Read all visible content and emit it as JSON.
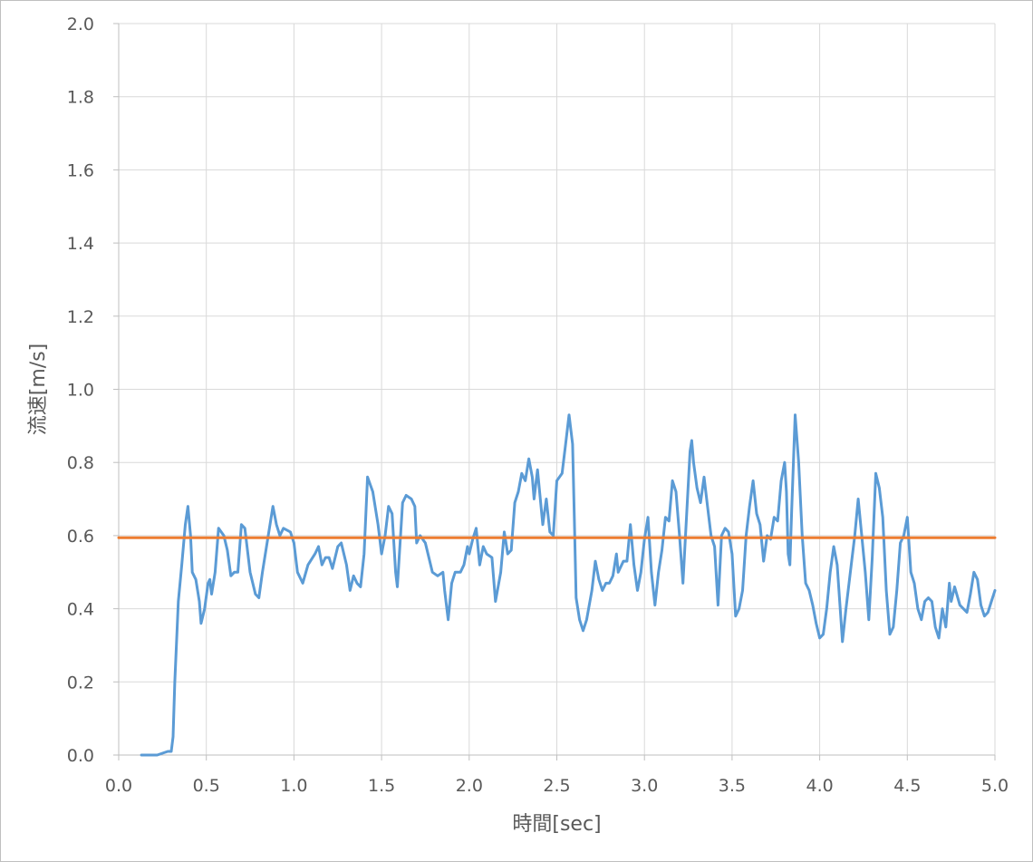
{
  "chart_data": {
    "type": "line",
    "title": "",
    "xlabel": "時間[sec]",
    "ylabel": "流速[m/s]",
    "xlim": [
      0.0,
      5.0
    ],
    "ylim": [
      0.0,
      2.0
    ],
    "x_ticks": [
      "0.0",
      "0.5",
      "1.0",
      "1.5",
      "2.0",
      "2.5",
      "3.0",
      "3.5",
      "4.0",
      "4.5",
      "5.0"
    ],
    "y_ticks": [
      "0.0",
      "0.2",
      "0.4",
      "0.6",
      "0.8",
      "1.0",
      "1.2",
      "1.4",
      "1.6",
      "1.8",
      "2.0"
    ],
    "grid": true,
    "legend": "none",
    "series": [
      {
        "color": "#5b9bd5",
        "points": [
          [
            0.13,
            0.0
          ],
          [
            0.22,
            0.0
          ],
          [
            0.25,
            0.005
          ],
          [
            0.28,
            0.01
          ],
          [
            0.3,
            0.01
          ],
          [
            0.31,
            0.05
          ],
          [
            0.32,
            0.2
          ],
          [
            0.34,
            0.42
          ],
          [
            0.36,
            0.52
          ],
          [
            0.38,
            0.63
          ],
          [
            0.395,
            0.68
          ],
          [
            0.41,
            0.6
          ],
          [
            0.42,
            0.5
          ],
          [
            0.44,
            0.48
          ],
          [
            0.46,
            0.42
          ],
          [
            0.47,
            0.36
          ],
          [
            0.49,
            0.4
          ],
          [
            0.51,
            0.47
          ],
          [
            0.52,
            0.48
          ],
          [
            0.53,
            0.44
          ],
          [
            0.55,
            0.5
          ],
          [
            0.57,
            0.62
          ],
          [
            0.6,
            0.6
          ],
          [
            0.62,
            0.56
          ],
          [
            0.64,
            0.49
          ],
          [
            0.66,
            0.5
          ],
          [
            0.68,
            0.5
          ],
          [
            0.7,
            0.63
          ],
          [
            0.72,
            0.62
          ],
          [
            0.75,
            0.5
          ],
          [
            0.78,
            0.44
          ],
          [
            0.8,
            0.43
          ],
          [
            0.82,
            0.5
          ],
          [
            0.85,
            0.59
          ],
          [
            0.88,
            0.68
          ],
          [
            0.9,
            0.63
          ],
          [
            0.92,
            0.6
          ],
          [
            0.94,
            0.62
          ],
          [
            0.98,
            0.61
          ],
          [
            1.0,
            0.58
          ],
          [
            1.02,
            0.5
          ],
          [
            1.05,
            0.47
          ],
          [
            1.08,
            0.52
          ],
          [
            1.12,
            0.55
          ],
          [
            1.14,
            0.57
          ],
          [
            1.16,
            0.52
          ],
          [
            1.18,
            0.54
          ],
          [
            1.2,
            0.54
          ],
          [
            1.22,
            0.51
          ],
          [
            1.25,
            0.57
          ],
          [
            1.27,
            0.58
          ],
          [
            1.3,
            0.52
          ],
          [
            1.32,
            0.45
          ],
          [
            1.34,
            0.49
          ],
          [
            1.36,
            0.47
          ],
          [
            1.38,
            0.46
          ],
          [
            1.4,
            0.55
          ],
          [
            1.42,
            0.76
          ],
          [
            1.45,
            0.72
          ],
          [
            1.48,
            0.63
          ],
          [
            1.5,
            0.55
          ],
          [
            1.52,
            0.6
          ],
          [
            1.54,
            0.68
          ],
          [
            1.56,
            0.66
          ],
          [
            1.58,
            0.5
          ],
          [
            1.59,
            0.46
          ],
          [
            1.62,
            0.69
          ],
          [
            1.64,
            0.71
          ],
          [
            1.67,
            0.7
          ],
          [
            1.69,
            0.68
          ],
          [
            1.7,
            0.58
          ],
          [
            1.72,
            0.6
          ],
          [
            1.75,
            0.58
          ],
          [
            1.77,
            0.54
          ],
          [
            1.79,
            0.5
          ],
          [
            1.82,
            0.49
          ],
          [
            1.85,
            0.5
          ],
          [
            1.86,
            0.45
          ],
          [
            1.88,
            0.37
          ],
          [
            1.9,
            0.47
          ],
          [
            1.92,
            0.5
          ],
          [
            1.95,
            0.5
          ],
          [
            1.97,
            0.52
          ],
          [
            1.99,
            0.57
          ],
          [
            2.0,
            0.55
          ],
          [
            2.02,
            0.59
          ],
          [
            2.04,
            0.62
          ],
          [
            2.06,
            0.52
          ],
          [
            2.08,
            0.57
          ],
          [
            2.1,
            0.55
          ],
          [
            2.13,
            0.54
          ],
          [
            2.15,
            0.42
          ],
          [
            2.18,
            0.5
          ],
          [
            2.2,
            0.61
          ],
          [
            2.22,
            0.55
          ],
          [
            2.24,
            0.56
          ],
          [
            2.26,
            0.69
          ],
          [
            2.28,
            0.72
          ],
          [
            2.3,
            0.77
          ],
          [
            2.32,
            0.75
          ],
          [
            2.34,
            0.81
          ],
          [
            2.36,
            0.76
          ],
          [
            2.37,
            0.7
          ],
          [
            2.39,
            0.78
          ],
          [
            2.42,
            0.63
          ],
          [
            2.44,
            0.7
          ],
          [
            2.46,
            0.61
          ],
          [
            2.48,
            0.6
          ],
          [
            2.5,
            0.75
          ],
          [
            2.53,
            0.77
          ],
          [
            2.55,
            0.85
          ],
          [
            2.57,
            0.93
          ],
          [
            2.59,
            0.85
          ],
          [
            2.6,
            0.65
          ],
          [
            2.61,
            0.43
          ],
          [
            2.63,
            0.37
          ],
          [
            2.65,
            0.34
          ],
          [
            2.67,
            0.37
          ],
          [
            2.7,
            0.45
          ],
          [
            2.72,
            0.53
          ],
          [
            2.74,
            0.48
          ],
          [
            2.76,
            0.45
          ],
          [
            2.78,
            0.47
          ],
          [
            2.8,
            0.47
          ],
          [
            2.82,
            0.49
          ],
          [
            2.84,
            0.55
          ],
          [
            2.85,
            0.5
          ],
          [
            2.88,
            0.53
          ],
          [
            2.9,
            0.53
          ],
          [
            2.92,
            0.63
          ],
          [
            2.94,
            0.52
          ],
          [
            2.96,
            0.45
          ],
          [
            2.98,
            0.5
          ],
          [
            3.0,
            0.59
          ],
          [
            3.02,
            0.65
          ],
          [
            3.04,
            0.5
          ],
          [
            3.06,
            0.41
          ],
          [
            3.08,
            0.5
          ],
          [
            3.1,
            0.56
          ],
          [
            3.12,
            0.65
          ],
          [
            3.14,
            0.64
          ],
          [
            3.16,
            0.75
          ],
          [
            3.18,
            0.72
          ],
          [
            3.2,
            0.6
          ],
          [
            3.22,
            0.47
          ],
          [
            3.24,
            0.65
          ],
          [
            3.26,
            0.83
          ],
          [
            3.27,
            0.86
          ],
          [
            3.28,
            0.8
          ],
          [
            3.3,
            0.73
          ],
          [
            3.32,
            0.69
          ],
          [
            3.34,
            0.76
          ],
          [
            3.36,
            0.68
          ],
          [
            3.38,
            0.6
          ],
          [
            3.4,
            0.57
          ],
          [
            3.42,
            0.41
          ],
          [
            3.44,
            0.6
          ],
          [
            3.46,
            0.62
          ],
          [
            3.48,
            0.61
          ],
          [
            3.5,
            0.55
          ],
          [
            3.52,
            0.38
          ],
          [
            3.54,
            0.4
          ],
          [
            3.56,
            0.45
          ],
          [
            3.58,
            0.6
          ],
          [
            3.6,
            0.68
          ],
          [
            3.62,
            0.75
          ],
          [
            3.64,
            0.66
          ],
          [
            3.66,
            0.63
          ],
          [
            3.68,
            0.53
          ],
          [
            3.7,
            0.6
          ],
          [
            3.72,
            0.59
          ],
          [
            3.74,
            0.65
          ],
          [
            3.76,
            0.64
          ],
          [
            3.78,
            0.75
          ],
          [
            3.8,
            0.8
          ],
          [
            3.81,
            0.72
          ],
          [
            3.82,
            0.55
          ],
          [
            3.83,
            0.52
          ],
          [
            3.84,
            0.67
          ],
          [
            3.86,
            0.93
          ],
          [
            3.88,
            0.8
          ],
          [
            3.9,
            0.6
          ],
          [
            3.92,
            0.47
          ],
          [
            3.94,
            0.45
          ],
          [
            3.96,
            0.41
          ],
          [
            3.98,
            0.36
          ],
          [
            4.0,
            0.32
          ],
          [
            4.02,
            0.33
          ],
          [
            4.04,
            0.4
          ],
          [
            4.06,
            0.5
          ],
          [
            4.08,
            0.57
          ],
          [
            4.1,
            0.52
          ],
          [
            4.12,
            0.38
          ],
          [
            4.13,
            0.31
          ],
          [
            4.15,
            0.4
          ],
          [
            4.18,
            0.52
          ],
          [
            4.2,
            0.6
          ],
          [
            4.22,
            0.7
          ],
          [
            4.24,
            0.6
          ],
          [
            4.26,
            0.5
          ],
          [
            4.28,
            0.37
          ],
          [
            4.3,
            0.54
          ],
          [
            4.32,
            0.77
          ],
          [
            4.34,
            0.73
          ],
          [
            4.36,
            0.65
          ],
          [
            4.38,
            0.45
          ],
          [
            4.4,
            0.33
          ],
          [
            4.42,
            0.35
          ],
          [
            4.44,
            0.45
          ],
          [
            4.46,
            0.58
          ],
          [
            4.48,
            0.6
          ],
          [
            4.5,
            0.65
          ],
          [
            4.52,
            0.5
          ],
          [
            4.54,
            0.47
          ],
          [
            4.56,
            0.4
          ],
          [
            4.58,
            0.37
          ],
          [
            4.6,
            0.42
          ],
          [
            4.62,
            0.43
          ],
          [
            4.64,
            0.42
          ],
          [
            4.66,
            0.35
          ],
          [
            4.68,
            0.32
          ],
          [
            4.7,
            0.4
          ],
          [
            4.72,
            0.35
          ],
          [
            4.74,
            0.47
          ],
          [
            4.75,
            0.42
          ],
          [
            4.77,
            0.46
          ],
          [
            4.8,
            0.41
          ],
          [
            4.82,
            0.4
          ],
          [
            4.84,
            0.39
          ],
          [
            4.86,
            0.44
          ],
          [
            4.88,
            0.5
          ],
          [
            4.9,
            0.48
          ],
          [
            4.92,
            0.41
          ],
          [
            4.94,
            0.38
          ],
          [
            4.96,
            0.39
          ],
          [
            4.98,
            0.42
          ],
          [
            5.0,
            0.45
          ]
        ]
      },
      {
        "color": "#ed7d31",
        "points": [
          [
            0.0,
            0.594
          ],
          [
            5.0,
            0.594
          ]
        ]
      }
    ]
  }
}
